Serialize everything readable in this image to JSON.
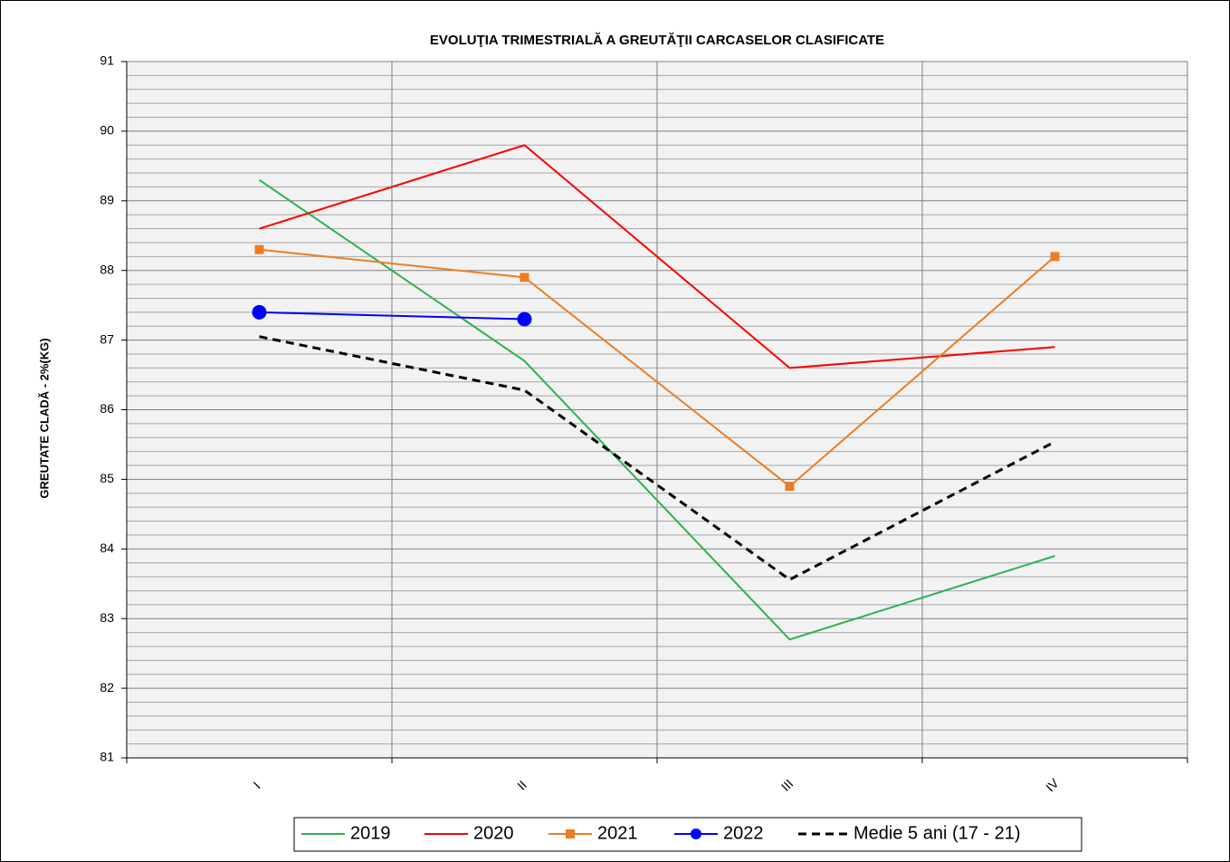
{
  "chart_data": {
    "type": "line",
    "title": "EVOLUŢIA TRIMESTRIALĂ A GREUTĂŢII CARCASELOR CLASIFICATE",
    "y_label": "GREUTATE  CLADĂ  - 2%(KG)",
    "categories": [
      "I",
      "II",
      "III",
      "IV"
    ],
    "series": [
      {
        "name": "2019",
        "color": "#2bb34f",
        "marker": "none",
        "dash": false,
        "values": [
          89.3,
          86.7,
          82.7,
          83.9
        ]
      },
      {
        "name": "2020",
        "color": "#ff0000",
        "marker": "none",
        "dash": false,
        "values": [
          88.6,
          89.8,
          86.6,
          86.9
        ]
      },
      {
        "name": "2021",
        "color": "#ed7d22",
        "marker": "square",
        "dash": false,
        "values": [
          88.3,
          87.9,
          84.9,
          88.2
        ]
      },
      {
        "name": "2022",
        "color": "#0000ff",
        "marker": "circle",
        "dash": false,
        "values": [
          87.4,
          87.3,
          null,
          null
        ]
      },
      {
        "name": "Medie 5 ani (17 - 21)",
        "color": "#000000",
        "marker": "none",
        "dash": true,
        "values": [
          87.05,
          86.28,
          83.56,
          85.54
        ]
      }
    ],
    "ylim": [
      81,
      91
    ],
    "yticks": [
      81,
      82,
      83,
      84,
      85,
      86,
      87,
      88,
      89,
      90,
      91
    ],
    "minor_yticks": [
      81.2,
      81.4,
      81.6,
      81.8,
      82.2,
      82.4,
      82.6,
      82.8,
      83.2,
      83.4,
      83.6,
      83.8,
      84.2,
      84.4,
      84.6,
      84.8,
      85.2,
      85.4,
      85.6,
      85.8,
      86.2,
      86.4,
      86.6,
      86.8,
      87.2,
      87.4,
      87.6,
      87.8,
      88.2,
      88.4,
      88.6,
      88.8,
      89.2,
      89.4,
      89.6,
      89.8,
      90.2,
      90.4,
      90.6,
      90.8
    ],
    "grid": true,
    "legend": "bottom"
  }
}
